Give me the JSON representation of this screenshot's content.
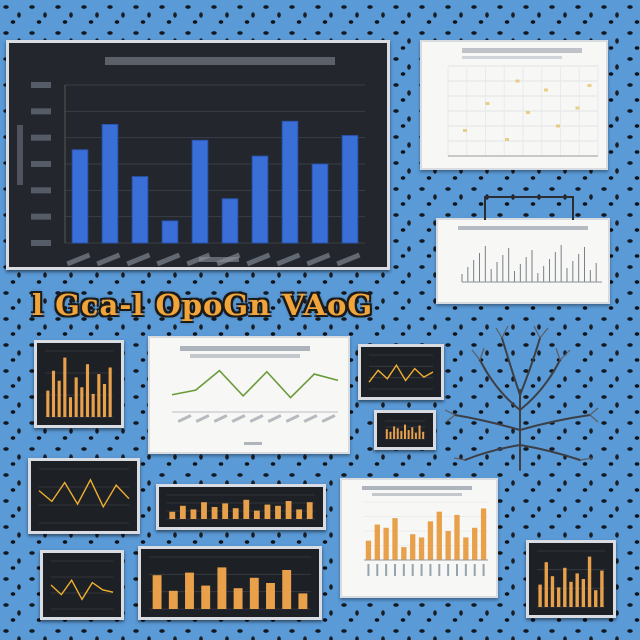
{
  "banner": {
    "text": "l Gca-l OpoGn VAoG"
  },
  "colors": {
    "background": "#5a9ad6",
    "bar_blue": "#3a6fd8",
    "bar_orange": "#e8a04a",
    "line_gold": "#f0b030",
    "line_green": "#6a9b3a",
    "dark_panel": "#22252b"
  },
  "main_chart": {
    "chart_data": {
      "type": "bar",
      "title": "",
      "ylim": [
        0,
        100
      ],
      "values": [
        59,
        75,
        42,
        14,
        65,
        28,
        55,
        77,
        50,
        68
      ],
      "grid": true
    }
  },
  "mini_charts": [
    {
      "type": "bar",
      "values": [
        40,
        70,
        55,
        90,
        30,
        60,
        45,
        80,
        35,
        65,
        50,
        75
      ]
    },
    {
      "type": "line",
      "values": [
        20,
        55,
        30,
        70,
        25,
        60,
        35,
        50
      ]
    },
    {
      "type": "line",
      "values": [
        60,
        40,
        75,
        35,
        80,
        30,
        70,
        45
      ]
    },
    {
      "type": "bar",
      "values": [
        30,
        55,
        40,
        70,
        50,
        65,
        45,
        80,
        35,
        60,
        55,
        75,
        40,
        70
      ]
    },
    {
      "type": "line",
      "values": [
        50,
        30,
        60,
        20,
        55,
        40,
        35
      ]
    },
    {
      "type": "bar",
      "values": [
        65,
        35,
        70,
        45,
        80,
        40,
        60,
        50,
        75,
        30
      ]
    },
    {
      "type": "bar",
      "values": [
        40,
        80,
        55,
        35,
        70,
        45,
        60,
        50,
        90,
        30,
        65
      ]
    },
    {
      "type": "bar",
      "values": [
        55,
        40,
        70,
        60,
        45,
        80,
        50,
        65,
        35,
        75,
        40
      ]
    }
  ],
  "green_line_chart": {
    "values": [
      30,
      38,
      72,
      28,
      70,
      25,
      66,
      55
    ]
  },
  "orange_bar_chart": {
    "values": [
      30,
      55,
      50,
      65,
      20,
      40,
      35,
      60,
      75,
      45,
      70,
      35,
      50,
      80
    ]
  }
}
